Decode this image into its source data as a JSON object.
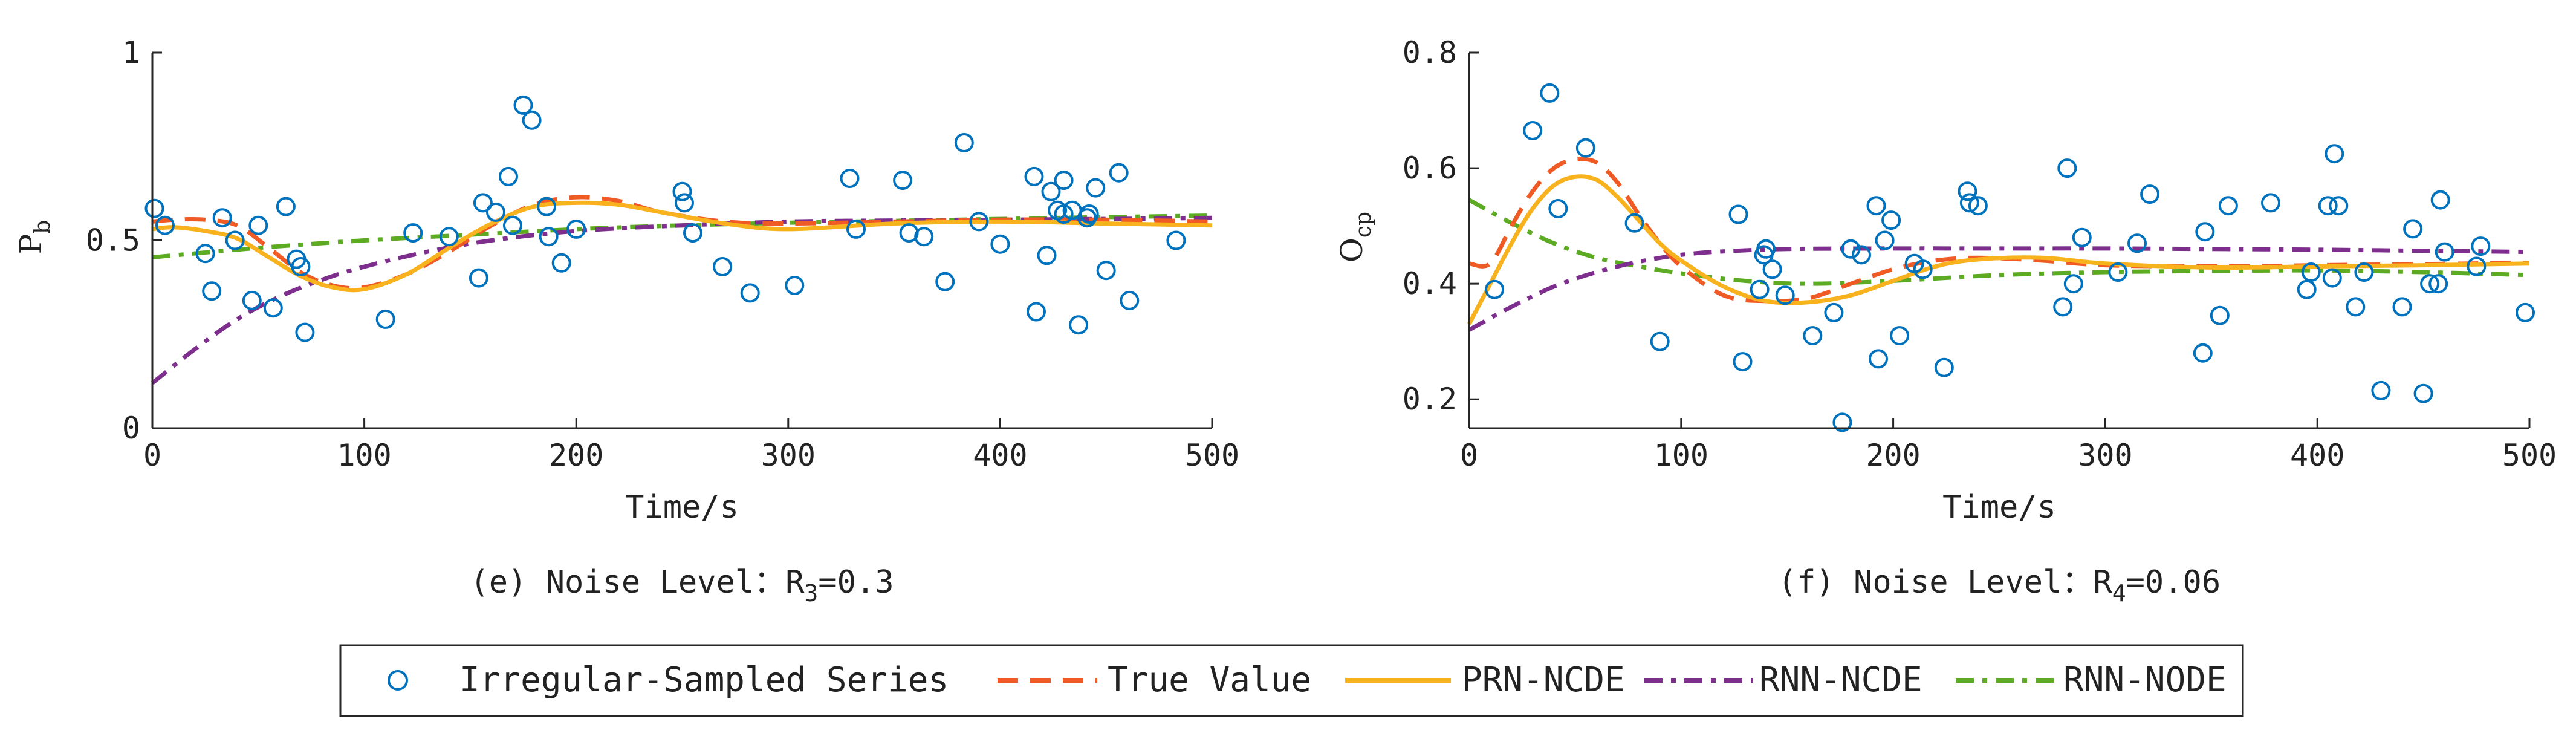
{
  "colors": {
    "samples": "#0072BD",
    "true_value": "#F05A24",
    "prn_ncde": "#F7B21E",
    "rnn_ncde": "#7E2F8E",
    "rnn_node": "#5CAB23",
    "axis": "#262626"
  },
  "legend": {
    "items": [
      {
        "key": "samples",
        "label": "Irregular-Sampled Series"
      },
      {
        "key": "true_value",
        "label": "True Value"
      },
      {
        "key": "prn_ncde",
        "label": "PRN-NCDE"
      },
      {
        "key": "rnn_ncde",
        "label": "RNN-NCDE"
      },
      {
        "key": "rnn_node",
        "label": "RNN-NODE"
      }
    ]
  },
  "chart_data": [
    {
      "type": "line",
      "panel_id": "e",
      "caption_prefix": "(e) Noise Level：R",
      "caption_sub": "3",
      "caption_suffix": "=0.3",
      "xlabel": "Time/s",
      "ylabel_main": "P",
      "ylabel_sub": "b",
      "xlim": [
        0,
        500
      ],
      "ylim": [
        0,
        1
      ],
      "xticks": [
        0,
        100,
        200,
        300,
        400,
        500
      ],
      "yticks": [
        0,
        0.5,
        1
      ],
      "ytick_labels": [
        "0",
        "0.5",
        "1"
      ],
      "grid": false,
      "scatter": {
        "name": "Irregular-Sampled Series",
        "x": [
          1,
          6,
          25,
          28,
          33,
          39,
          47,
          50,
          57,
          63,
          68,
          70,
          72,
          110,
          123,
          140,
          154,
          156,
          162,
          168,
          170,
          175,
          179,
          186,
          187,
          193,
          200,
          250,
          251,
          255,
          269,
          282,
          303,
          329,
          332,
          354,
          357,
          364,
          374,
          383,
          390,
          400,
          416,
          417,
          422,
          424,
          427,
          430,
          430,
          434,
          437,
          441,
          442,
          445,
          450,
          456,
          461,
          483
        ],
        "y": [
          0.585,
          0.54,
          0.465,
          0.365,
          0.56,
          0.5,
          0.34,
          0.54,
          0.32,
          0.59,
          0.45,
          0.43,
          0.255,
          0.29,
          0.52,
          0.51,
          0.4,
          0.6,
          0.575,
          0.67,
          0.54,
          0.86,
          0.82,
          0.59,
          0.51,
          0.44,
          0.53,
          0.63,
          0.6,
          0.52,
          0.43,
          0.36,
          0.38,
          0.665,
          0.53,
          0.66,
          0.52,
          0.51,
          0.39,
          0.76,
          0.55,
          0.49,
          0.67,
          0.31,
          0.46,
          0.63,
          0.58,
          0.57,
          0.66,
          0.58,
          0.275,
          0.56,
          0.57,
          0.64,
          0.42,
          0.68,
          0.34,
          0.5
        ]
      },
      "series": [
        {
          "name": "True Value",
          "x": [
            0,
            10,
            25,
            40,
            55,
            70,
            85,
            100,
            120,
            140,
            160,
            180,
            200,
            220,
            240,
            270,
            300,
            350,
            400,
            450,
            500
          ],
          "y": [
            0.55,
            0.555,
            0.555,
            0.54,
            0.48,
            0.415,
            0.38,
            0.375,
            0.41,
            0.47,
            0.54,
            0.595,
            0.615,
            0.605,
            0.575,
            0.55,
            0.545,
            0.55,
            0.555,
            0.555,
            0.55
          ]
        },
        {
          "name": "PRN-NCDE",
          "x": [
            0,
            10,
            25,
            40,
            55,
            70,
            85,
            100,
            120,
            140,
            160,
            180,
            200,
            220,
            240,
            270,
            300,
            350,
            400,
            450,
            500
          ],
          "y": [
            0.53,
            0.535,
            0.525,
            0.505,
            0.455,
            0.405,
            0.375,
            0.37,
            0.41,
            0.48,
            0.545,
            0.59,
            0.6,
            0.595,
            0.575,
            0.545,
            0.53,
            0.545,
            0.55,
            0.545,
            0.54
          ]
        },
        {
          "name": "RNN-NCDE",
          "x": [
            0,
            20,
            40,
            60,
            80,
            100,
            130,
            160,
            200,
            250,
            300,
            350,
            400,
            450,
            500
          ],
          "y": [
            0.12,
            0.21,
            0.29,
            0.35,
            0.395,
            0.43,
            0.47,
            0.5,
            0.525,
            0.54,
            0.55,
            0.553,
            0.555,
            0.557,
            0.56
          ]
        },
        {
          "name": "RNN-NODE",
          "x": [
            0,
            50,
            100,
            150,
            200,
            250,
            300,
            350,
            400,
            450,
            500
          ],
          "y": [
            0.455,
            0.48,
            0.5,
            0.515,
            0.53,
            0.54,
            0.547,
            0.552,
            0.557,
            0.562,
            0.566
          ]
        }
      ]
    },
    {
      "type": "line",
      "panel_id": "f",
      "caption_prefix": "(f) Noise Level：R",
      "caption_sub": "4",
      "caption_suffix": "=0.06",
      "xlabel": "Time/s",
      "ylabel_main": "O",
      "ylabel_sub": "cp",
      "xlim": [
        0,
        500
      ],
      "ylim": [
        0.15,
        0.8
      ],
      "xticks": [
        0,
        100,
        200,
        300,
        400,
        500
      ],
      "yticks": [
        0.2,
        0.4,
        0.6,
        0.8
      ],
      "ytick_labels": [
        "0.2",
        "0.4",
        "0.6",
        "0.8"
      ],
      "grid": false,
      "scatter": {
        "name": "Irregular-Sampled Series",
        "x": [
          12,
          30,
          38,
          42,
          55,
          78,
          90,
          127,
          129,
          137,
          139,
          140,
          143,
          149,
          162,
          172,
          176,
          180,
          185,
          192,
          193,
          196,
          199,
          203,
          210,
          214,
          224,
          235,
          236,
          240,
          280,
          282,
          285,
          289,
          306,
          315,
          321,
          346,
          347,
          354,
          358,
          378,
          395,
          397,
          405,
          407,
          408,
          410,
          418,
          422,
          430,
          440,
          445,
          450,
          453,
          457,
          458,
          460,
          475,
          477,
          498
        ],
        "y": [
          0.39,
          0.665,
          0.73,
          0.53,
          0.635,
          0.505,
          0.3,
          0.52,
          0.265,
          0.39,
          0.45,
          0.46,
          0.425,
          0.38,
          0.31,
          0.35,
          0.16,
          0.46,
          0.45,
          0.535,
          0.27,
          0.475,
          0.51,
          0.31,
          0.435,
          0.425,
          0.255,
          0.56,
          0.54,
          0.535,
          0.36,
          0.6,
          0.4,
          0.48,
          0.42,
          0.47,
          0.555,
          0.28,
          0.49,
          0.345,
          0.535,
          0.54,
          0.39,
          0.42,
          0.535,
          0.41,
          0.625,
          0.535,
          0.36,
          0.42,
          0.215,
          0.36,
          0.495,
          0.21,
          0.4,
          0.4,
          0.545,
          0.455,
          0.43,
          0.465,
          0.35
        ]
      },
      "series": [
        {
          "name": "True Value",
          "x": [
            0,
            10,
            20,
            30,
            40,
            50,
            60,
            70,
            80,
            90,
            100,
            120,
            140,
            160,
            180,
            200,
            220,
            240,
            270,
            300,
            350,
            400,
            450,
            500
          ],
          "y": [
            0.435,
            0.435,
            0.5,
            0.56,
            0.6,
            0.615,
            0.61,
            0.575,
            0.52,
            0.47,
            0.43,
            0.38,
            0.37,
            0.375,
            0.4,
            0.425,
            0.44,
            0.445,
            0.44,
            0.432,
            0.43,
            0.432,
            0.434,
            0.436
          ]
        },
        {
          "name": "PRN-NCDE",
          "x": [
            0,
            10,
            20,
            30,
            40,
            50,
            60,
            70,
            80,
            90,
            100,
            120,
            140,
            160,
            180,
            200,
            220,
            240,
            270,
            300,
            350,
            400,
            450,
            500
          ],
          "y": [
            0.33,
            0.4,
            0.47,
            0.53,
            0.57,
            0.585,
            0.58,
            0.55,
            0.51,
            0.47,
            0.44,
            0.395,
            0.37,
            0.368,
            0.38,
            0.405,
            0.43,
            0.442,
            0.445,
            0.435,
            0.428,
            0.43,
            0.432,
            0.435
          ]
        },
        {
          "name": "RNN-NCDE",
          "x": [
            0,
            20,
            40,
            60,
            80,
            100,
            120,
            150,
            200,
            250,
            300,
            350,
            400,
            450,
            500
          ],
          "y": [
            0.32,
            0.36,
            0.395,
            0.42,
            0.438,
            0.45,
            0.456,
            0.46,
            0.461,
            0.461,
            0.461,
            0.46,
            0.459,
            0.457,
            0.455
          ]
        },
        {
          "name": "RNN-NODE",
          "x": [
            0,
            20,
            40,
            60,
            80,
            100,
            130,
            160,
            200,
            250,
            300,
            350,
            400,
            450,
            500
          ],
          "y": [
            0.545,
            0.505,
            0.47,
            0.445,
            0.43,
            0.418,
            0.405,
            0.4,
            0.405,
            0.415,
            0.42,
            0.422,
            0.423,
            0.42,
            0.415
          ]
        }
      ]
    }
  ]
}
